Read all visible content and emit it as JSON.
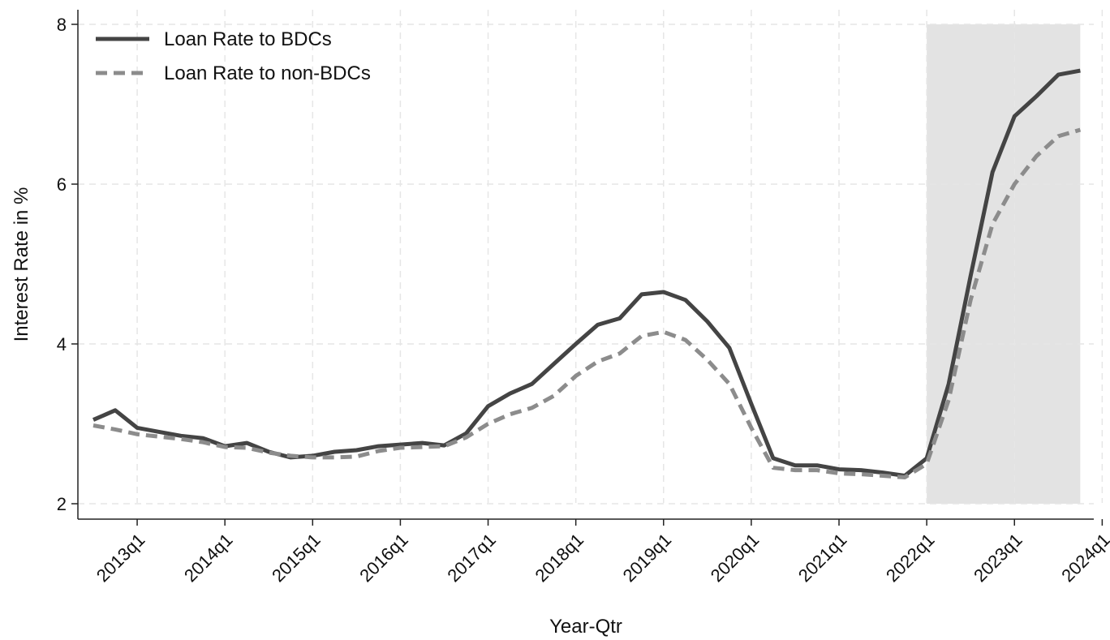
{
  "chart_data": {
    "type": "line",
    "xlabel": "Year-Qtr",
    "ylabel": "Interest Rate in %",
    "ylim": [
      2,
      8
    ],
    "yticks": [
      2,
      4,
      6,
      8
    ],
    "xlim": [
      "2012q3",
      "2024q1"
    ],
    "x_tick_labels": [
      "2013q1",
      "2014q1",
      "2015q1",
      "2016q1",
      "2017q1",
      "2018q1",
      "2019q1",
      "2020q1",
      "2021q1",
      "2022q1",
      "2023q1",
      "2024q1"
    ],
    "grid": true,
    "legend_position": "top-left",
    "shaded_period": {
      "start": "2022q1",
      "end": "2023q4",
      "color": "#e3e3e3"
    },
    "x": [
      "2012q3",
      "2012q4",
      "2013q1",
      "2013q2",
      "2013q3",
      "2013q4",
      "2014q1",
      "2014q2",
      "2014q3",
      "2014q4",
      "2015q1",
      "2015q2",
      "2015q3",
      "2015q4",
      "2016q1",
      "2016q2",
      "2016q3",
      "2016q4",
      "2017q1",
      "2017q2",
      "2017q3",
      "2017q4",
      "2018q1",
      "2018q2",
      "2018q3",
      "2018q4",
      "2019q1",
      "2019q2",
      "2019q3",
      "2019q4",
      "2020q1",
      "2020q2",
      "2020q3",
      "2020q4",
      "2021q1",
      "2021q2",
      "2021q3",
      "2021q4",
      "2022q1",
      "2022q2",
      "2022q3",
      "2022q4",
      "2023q1",
      "2023q2",
      "2023q3",
      "2023q4"
    ],
    "series": [
      {
        "name": "Loan Rate to BDCs",
        "style": "solid",
        "color": "#444444",
        "values": [
          3.05,
          3.17,
          2.95,
          2.9,
          2.85,
          2.82,
          2.72,
          2.76,
          2.65,
          2.58,
          2.6,
          2.65,
          2.67,
          2.72,
          2.74,
          2.76,
          2.73,
          2.88,
          3.22,
          3.38,
          3.5,
          3.75,
          4.0,
          4.24,
          4.32,
          4.62,
          4.65,
          4.55,
          4.28,
          3.95,
          3.25,
          2.57,
          2.48,
          2.48,
          2.43,
          2.42,
          2.39,
          2.35,
          2.57,
          3.5,
          4.85,
          6.15,
          6.85,
          7.1,
          7.37,
          7.42
        ]
      },
      {
        "name": "Loan Rate to non-BDCs",
        "style": "dashed",
        "color": "#8c8c8c",
        "values": [
          2.98,
          2.93,
          2.87,
          2.84,
          2.81,
          2.77,
          2.71,
          2.7,
          2.64,
          2.6,
          2.58,
          2.58,
          2.59,
          2.66,
          2.7,
          2.71,
          2.72,
          2.83,
          3.0,
          3.12,
          3.2,
          3.35,
          3.6,
          3.78,
          3.88,
          4.1,
          4.15,
          4.05,
          3.8,
          3.5,
          2.95,
          2.45,
          2.42,
          2.42,
          2.38,
          2.37,
          2.35,
          2.33,
          2.5,
          3.3,
          4.55,
          5.5,
          6.0,
          6.35,
          6.6,
          6.68
        ]
      }
    ]
  }
}
